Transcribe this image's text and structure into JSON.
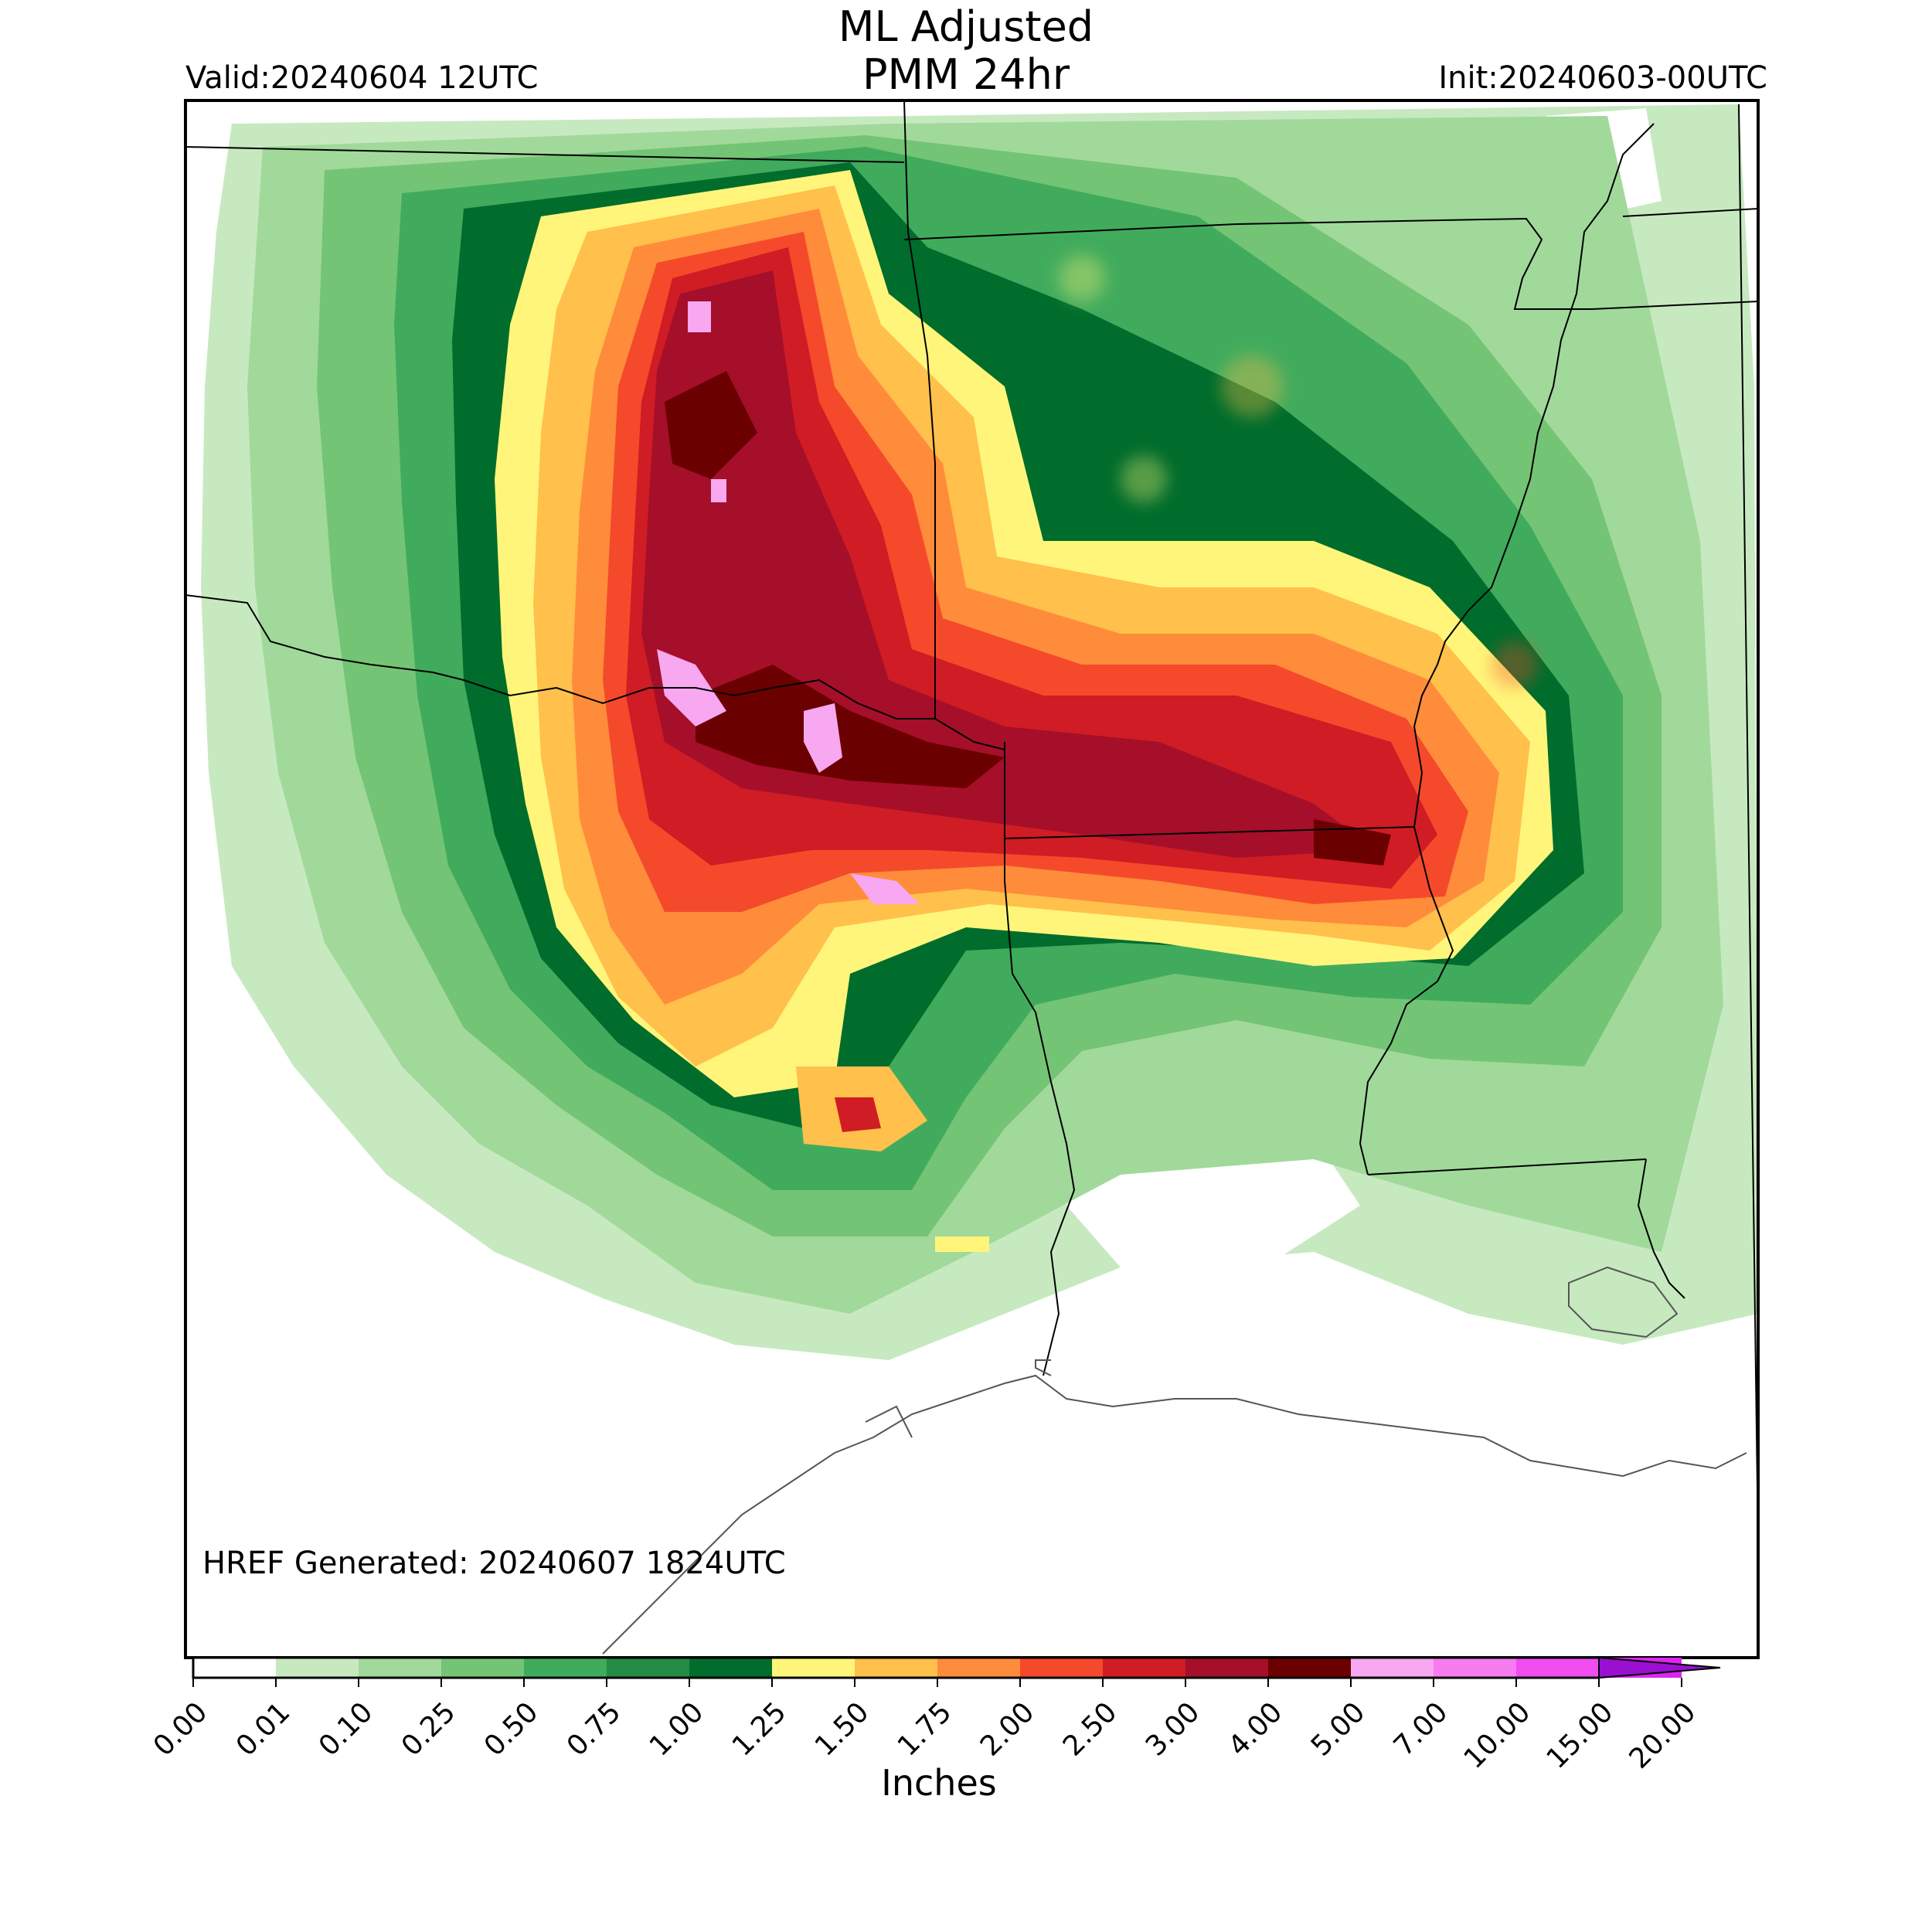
{
  "header": {
    "title_line1": "ML Adjusted",
    "title_line2": "PMM 24hr",
    "valid": "Valid:20240604 12UTC",
    "init": "Init:20240603-00UTC"
  },
  "footer": {
    "generated": "HREF Generated: 20240607 1824UTC"
  },
  "colorbar": {
    "title": "Inches",
    "ticks": [
      "0.00",
      "0.01",
      "0.10",
      "0.25",
      "0.50",
      "0.75",
      "1.00",
      "1.25",
      "1.50",
      "1.75",
      "2.00",
      "2.50",
      "3.00",
      "4.00",
      "5.00",
      "7.00",
      "10.00",
      "15.00",
      "20.00"
    ],
    "colors": [
      "#ffffff",
      "#c7e9c0",
      "#a1d99b",
      "#74c476",
      "#41ab5d",
      "#238b45",
      "#006d2c",
      "#fff57a",
      "#ffc04c",
      "#ff8c3a",
      "#f44a2b",
      "#d01c24",
      "#a50f2a",
      "#6b0000",
      "#f7a8f0",
      "#f77cf0",
      "#f04cf0",
      "#e024f0",
      "#9a10d0"
    ],
    "extend": "max"
  },
  "map": {
    "region": "South-central United States",
    "field": "24hr precipitation"
  }
}
